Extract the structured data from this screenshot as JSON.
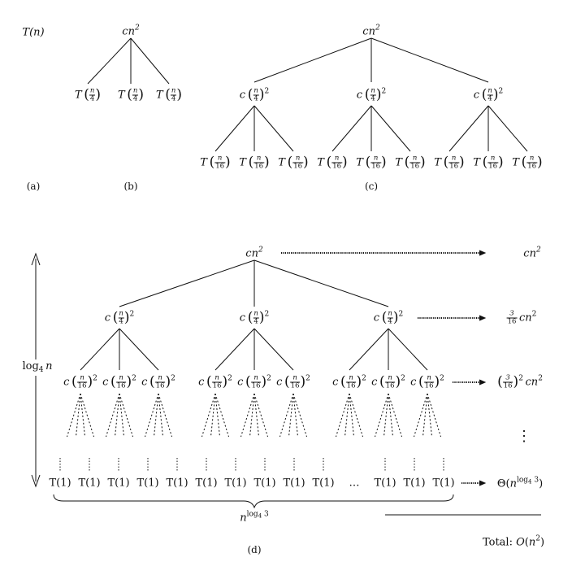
{
  "labels": {
    "a": "(a)",
    "b": "(b)",
    "c": "(c)",
    "d": "(d)",
    "Tn": "T(n)",
    "c_letter": "c",
    "T_letter": "T",
    "n_letter": "n",
    "cn2": "cn",
    "exp2": "2",
    "four": "4",
    "sixteen": "16",
    "three": "3",
    "T1": "T(1)",
    "ellipsis": "…",
    "log": "log",
    "sub4": "4",
    "theta_prefix": "Θ(",
    "theta_n": "n",
    "theta_exp": "log",
    "theta_exp_sub": "4",
    "theta_exp_tail": " 3",
    "theta_close": ")",
    "nlog_n": "n",
    "nlog_exp": "log",
    "nlog_sub": "4",
    "nlog_tail": " 3",
    "total_prefix": "Total: ",
    "total_O": "O",
    "total_open": "(",
    "total_n": "n",
    "total_close": ")",
    "vdots": "⋮"
  }
}
